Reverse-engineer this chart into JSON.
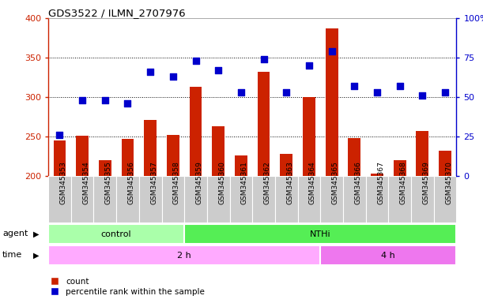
{
  "title": "GDS3522 / ILMN_2707976",
  "samples": [
    "GSM345353",
    "GSM345354",
    "GSM345355",
    "GSM345356",
    "GSM345357",
    "GSM345358",
    "GSM345359",
    "GSM345360",
    "GSM345361",
    "GSM345362",
    "GSM345363",
    "GSM345364",
    "GSM345365",
    "GSM345366",
    "GSM345367",
    "GSM345368",
    "GSM345369",
    "GSM345370"
  ],
  "counts": [
    245,
    251,
    220,
    247,
    271,
    252,
    313,
    263,
    226,
    332,
    228,
    300,
    387,
    248,
    203,
    220,
    257,
    232
  ],
  "percentile_ranks": [
    26,
    48,
    48,
    46,
    66,
    63,
    73,
    67,
    53,
    74,
    53,
    70,
    79,
    57,
    53,
    57,
    51,
    53
  ],
  "ylim_left": [
    200,
    400
  ],
  "ylim_right": [
    0,
    100
  ],
  "yticks_left": [
    200,
    250,
    300,
    350,
    400
  ],
  "yticks_right": [
    0,
    25,
    50,
    75,
    100
  ],
  "bar_color": "#cc2200",
  "dot_color": "#0000cc",
  "agent_control_cols": 6,
  "agent_nthi_cols": 12,
  "time_2h_cols": 12,
  "time_4h_cols": 6,
  "control_color": "#aaffaa",
  "nthi_color": "#55ee55",
  "time_2h_color": "#ffaaff",
  "time_4h_color": "#ee77ee",
  "agent_label_control": "control",
  "agent_label_nthi": "NTHi",
  "time_label_2h": "2 h",
  "time_label_4h": "4 h",
  "legend_count": "count",
  "legend_percentile": "percentile rank within the sample",
  "left_axis_color": "#cc2200",
  "right_axis_color": "#0000cc",
  "plot_bg": "#ffffff",
  "fig_bg": "#ffffff",
  "tick_label_bg": "#cccccc"
}
